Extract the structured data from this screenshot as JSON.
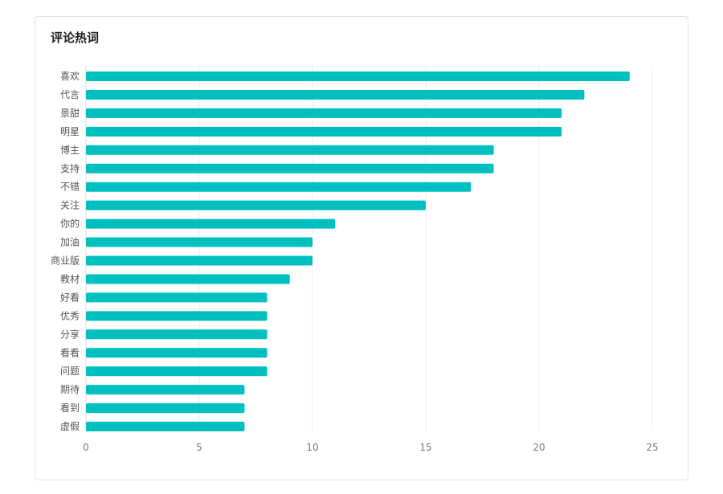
{
  "card": {
    "title": "评论热词"
  },
  "colors": {
    "bar": "#00bfbf",
    "grid": "#eeeeee",
    "card_border": "#e3e3e3"
  },
  "chart_data": {
    "type": "bar",
    "orientation": "horizontal",
    "title": "评论热词",
    "categories": [
      "喜欢",
      "代言",
      "景甜",
      "明星",
      "博主",
      "支持",
      "不错",
      "关注",
      "你的",
      "加油",
      "商业版",
      "教材",
      "好看",
      "优秀",
      "分享",
      "看看",
      "问题",
      "期待",
      "看到",
      "虚假"
    ],
    "values": [
      24,
      22,
      21,
      21,
      18,
      18,
      17,
      15,
      11,
      10,
      10,
      9,
      8,
      8,
      8,
      8,
      8,
      7,
      7,
      7
    ],
    "xlim": [
      0,
      25
    ],
    "xticks": [
      "0",
      "5",
      "10",
      "15",
      "20",
      "25"
    ],
    "xtick_values": [
      0,
      5,
      10,
      15,
      20,
      25
    ],
    "grid": "vertical",
    "legend": "none"
  }
}
